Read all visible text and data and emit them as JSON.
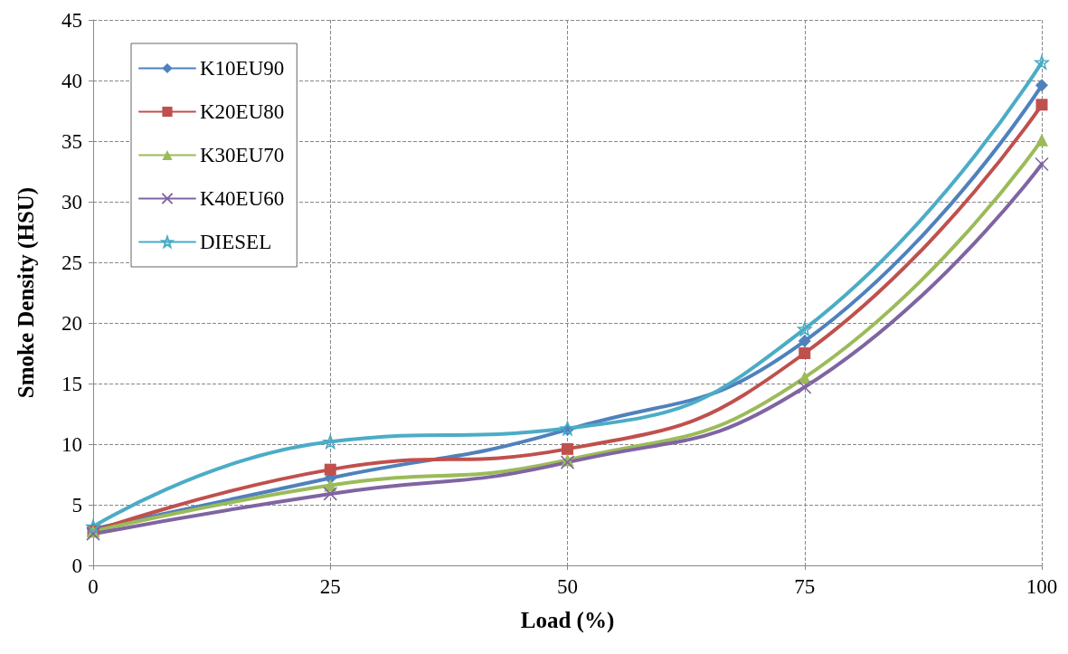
{
  "chart_data": {
    "type": "line",
    "xlabel": "Load (%)",
    "ylabel": "Smoke Density (HSU)",
    "x": [
      0,
      25,
      50,
      75,
      100
    ],
    "xlim": [
      0,
      100
    ],
    "xticks": [
      0,
      25,
      50,
      75,
      100
    ],
    "ylim": [
      0,
      45
    ],
    "yticks": [
      0,
      5,
      10,
      15,
      20,
      25,
      30,
      35,
      40,
      45
    ],
    "grid": true,
    "legend": "top left",
    "line_style": "solid",
    "series": [
      {
        "name": "K10EU90",
        "color": "#4f81bd",
        "marker": "diamond",
        "values": [
          3.0,
          7.2,
          11.2,
          18.5,
          39.6
        ]
      },
      {
        "name": "K20EU80",
        "color": "#c0504d",
        "marker": "square",
        "values": [
          2.8,
          7.9,
          9.6,
          17.5,
          38.0
        ]
      },
      {
        "name": "K30EU70",
        "color": "#9bbb59",
        "marker": "triangle",
        "values": [
          2.8,
          6.6,
          8.7,
          15.5,
          35.1
        ]
      },
      {
        "name": "K40EU60",
        "color": "#8064a2",
        "marker": "cross",
        "values": [
          2.6,
          5.9,
          8.5,
          14.7,
          33.1
        ]
      },
      {
        "name": "DIESEL",
        "color": "#4bacc6",
        "marker": "star",
        "values": [
          3.2,
          10.2,
          11.3,
          19.5,
          41.5
        ]
      }
    ]
  }
}
